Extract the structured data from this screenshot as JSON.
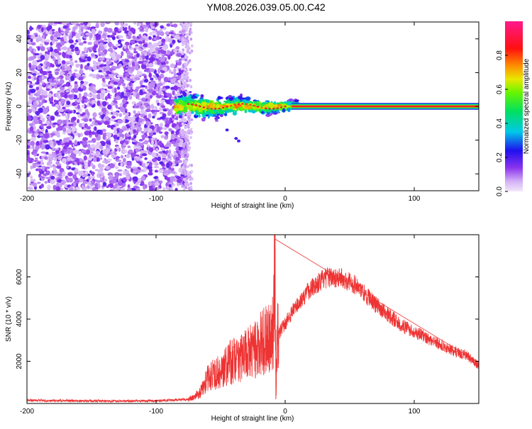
{
  "title": "YM08.2026.039.05.00.C42",
  "chart_data": [
    {
      "type": "heatmap",
      "name": "spectrogram",
      "xlabel": "Height of straight line (km)",
      "ylabel": "Frequency (Hz)",
      "xlim": [
        -200,
        150
      ],
      "ylim": [
        -50,
        50
      ],
      "x_ticks": [
        -200,
        -100,
        0,
        100
      ],
      "x_tick_labels": [
        "-200",
        "-100",
        "0",
        "100"
      ],
      "y_ticks": [
        -40,
        -20,
        0,
        20,
        40
      ],
      "y_tick_labels": [
        "-40",
        "-20",
        "0",
        "20",
        "40"
      ],
      "colorbar": {
        "label": "Normalized spectral amplitude",
        "range": [
          0,
          1
        ],
        "ticks": [
          0.0,
          0.2,
          0.4,
          0.6,
          0.8
        ],
        "tick_labels": [
          "0.0",
          "0.2",
          "0.4",
          "0.6",
          "0.8"
        ],
        "colormap": "rainbow (purple → blue → cyan → green → yellow → orange → red → magenta)"
      },
      "description_regions": [
        {
          "x_range": [
            -200,
            -77
          ],
          "y_range": [
            -50,
            50
          ],
          "amplitude": "low (0.05–0.25)",
          "pattern": "random purple speckle noise"
        },
        {
          "x_range": [
            -85,
            10
          ],
          "y_range": [
            -6,
            8
          ],
          "amplitude": "medium (0.3–0.7)",
          "pattern": "broadened band around 0 Hz"
        },
        {
          "x_range": [
            5,
            150
          ],
          "y_range": [
            -2,
            2
          ],
          "amplitude": "high (0.8–1.0)",
          "pattern": "narrow line at 0 Hz"
        }
      ],
      "grid": false
    },
    {
      "type": "line",
      "name": "snr",
      "xlabel": "Height of straight line (km)",
      "ylabel": "SNR (10 * v/v)",
      "xlim": [
        -200,
        150
      ],
      "ylim": [
        0,
        8000
      ],
      "x_ticks": [
        -200,
        -100,
        0,
        100
      ],
      "x_tick_labels": [
        "-200",
        "-100",
        "0",
        "100"
      ],
      "y_ticks": [
        2000,
        4000,
        6000
      ],
      "y_tick_labels": [
        "2000",
        "4000",
        "6000"
      ],
      "color": "#ee3333",
      "series": [
        {
          "x": [
            -200,
            -150,
            -100,
            -75,
            -70,
            -65,
            -60,
            -55,
            -50,
            -45,
            -40,
            -35,
            -30,
            -25,
            -20,
            -15,
            -10,
            -9,
            -8,
            -7,
            -6,
            -5,
            -3,
            0,
            5,
            10,
            15,
            20,
            25,
            30,
            35,
            40,
            45,
            50,
            55,
            60,
            65,
            70,
            80,
            90,
            100,
            110,
            120,
            130,
            140,
            150
          ],
          "y": [
            150,
            120,
            120,
            200,
            300,
            600,
            1200,
            1400,
            1500,
            1900,
            2000,
            2200,
            2300,
            2500,
            2800,
            3000,
            3400,
            3600,
            7800,
            500,
            3700,
            3300,
            3500,
            3800,
            4300,
            4700,
            5100,
            5500,
            5700,
            5900,
            6000,
            6000,
            5900,
            5800,
            5600,
            5300,
            5000,
            4700,
            4200,
            3700,
            3400,
            3100,
            2800,
            2500,
            2300,
            1800
          ]
        }
      ],
      "grid": false
    }
  ]
}
